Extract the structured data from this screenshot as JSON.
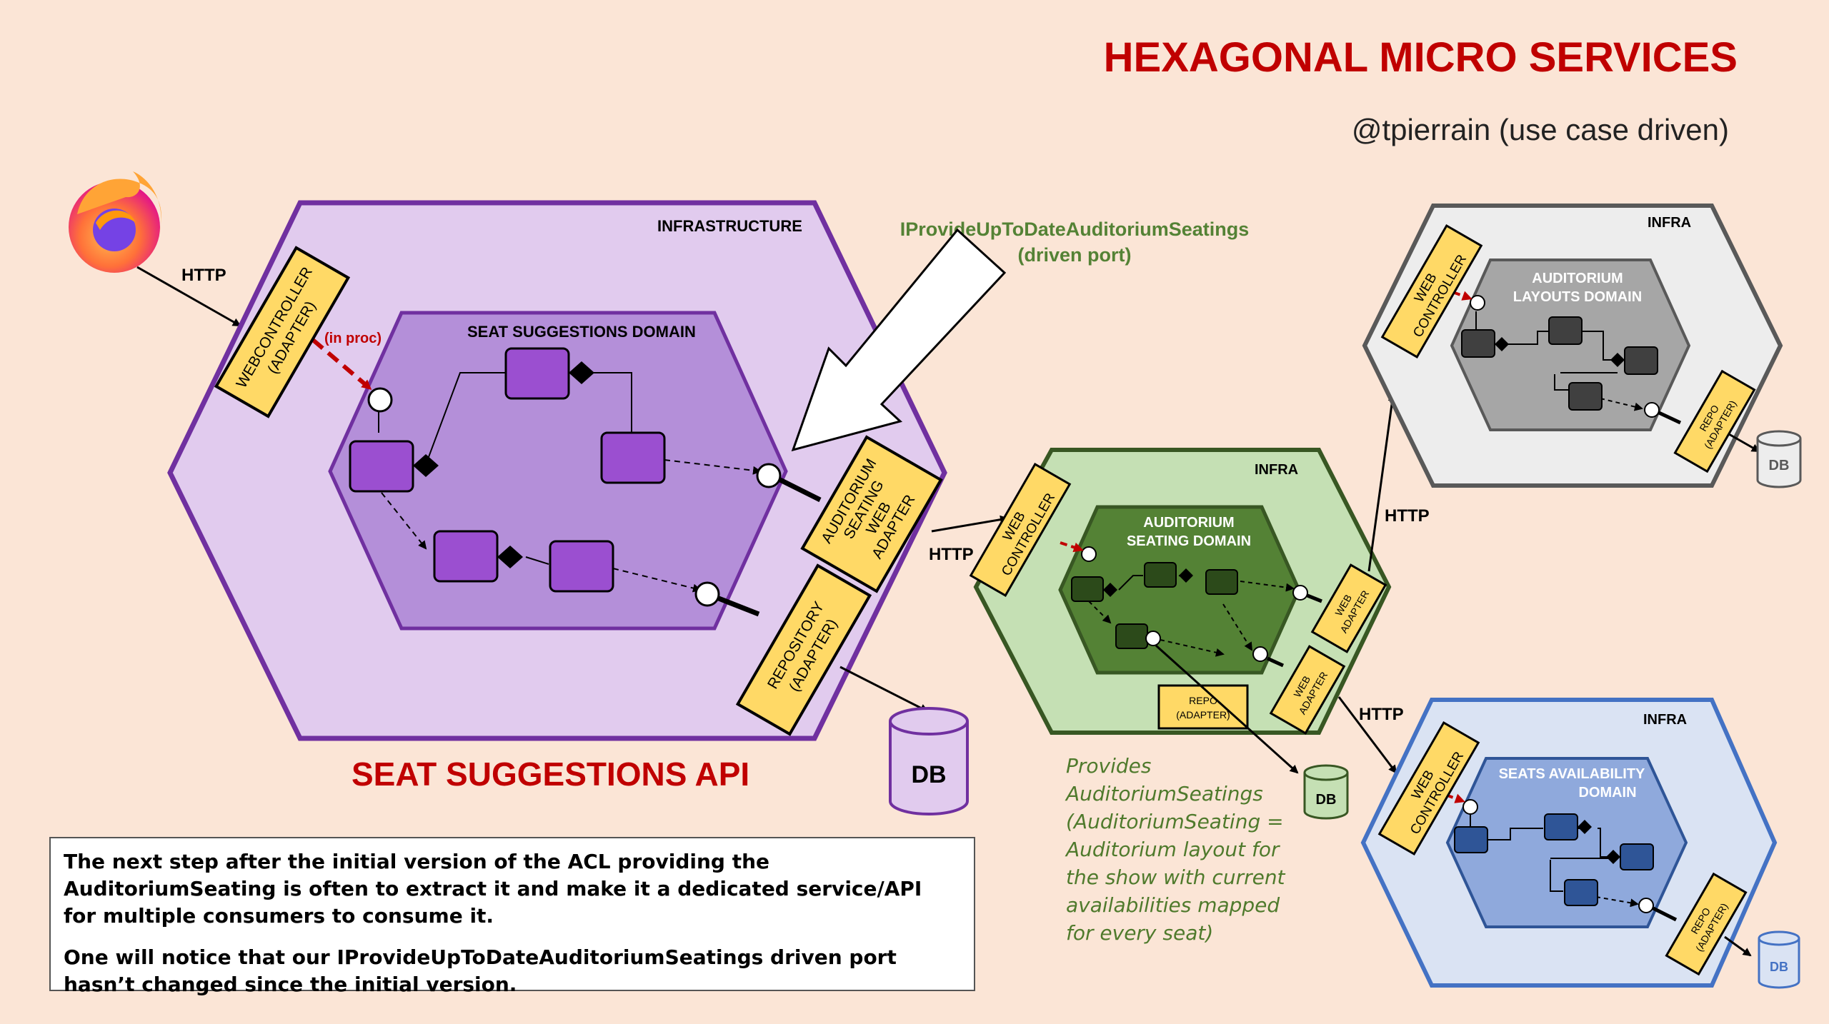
{
  "title": "HEXAGONAL MICRO SERVICES",
  "subtitle": "@tpierrain (use case driven)",
  "browser_icon": "firefox-icon",
  "colors": {
    "background": "#fbe5d6",
    "title_red": "#c00000",
    "adapter_yellow": "#ffd966",
    "purple": "#7030a0",
    "green": "#385723",
    "grey": "#595959",
    "blue": "#4472c4",
    "port_label_green": "#548235"
  },
  "seat_suggestions": {
    "infra_label": "INFRASTRUCTURE",
    "domain_label": "SEAT SUGGESTIONS DOMAIN",
    "web_controller": [
      "WEBCONTROLLER",
      "(ADAPTER)"
    ],
    "in_proc": "(in proc)",
    "seating_web_adapter": [
      "AUDITORIUM",
      "SEATING",
      "WEB",
      "ADAPTER"
    ],
    "repository": [
      "REPOSITORY",
      "(ADAPTER)"
    ],
    "api_label": "SEAT SUGGESTIONS API",
    "db": "DB"
  },
  "driven_port": {
    "name": "IProvideUpToDateAuditoriumSeatings",
    "kind": "(driven port)"
  },
  "http_labels": [
    "HTTP",
    "HTTP",
    "HTTP",
    "HTTP"
  ],
  "auditorium_seating": {
    "infra_label": "INFRA",
    "domain_label": [
      "AUDITORIUM",
      "SEATING DOMAIN"
    ],
    "web_controller": [
      "WEB",
      "CONTROLLER"
    ],
    "web_adapter": [
      "WEB",
      "ADAPTER"
    ],
    "repo": [
      "REPO",
      "(ADAPTER)"
    ],
    "db": "DB"
  },
  "auditorium_layouts": {
    "infra_label": "INFRA",
    "domain_label": [
      "AUDITORIUM",
      "LAYOUTS DOMAIN"
    ],
    "web_controller": [
      "WEB",
      "CONTROLLER"
    ],
    "repo": [
      "REPO",
      "(ADAPTER)"
    ],
    "db": "DB"
  },
  "seats_availability": {
    "infra_label": "INFRA",
    "domain_label": [
      "SEATS AVAILABILITY",
      "DOMAIN"
    ],
    "web_controller": [
      "WEB",
      "CONTROLLER"
    ],
    "repo": [
      "REPO",
      "(ADAPTER)"
    ],
    "db": "DB"
  },
  "provides_note": [
    "Provides",
    "AuditoriumSeatings",
    "(AuditoriumSeating =",
    "Auditorium layout for",
    "the show with current",
    "availabilities mapped",
    "for every seat)"
  ],
  "explanation": [
    "The next step after the initial version of the ACL providing the AuditoriumSeating is often to extract it and make it a dedicated service/API for multiple consumers to consume it.",
    "One will notice that our IProvideUpToDateAuditoriumSeatings driven port hasn’t changed since the initial version."
  ]
}
